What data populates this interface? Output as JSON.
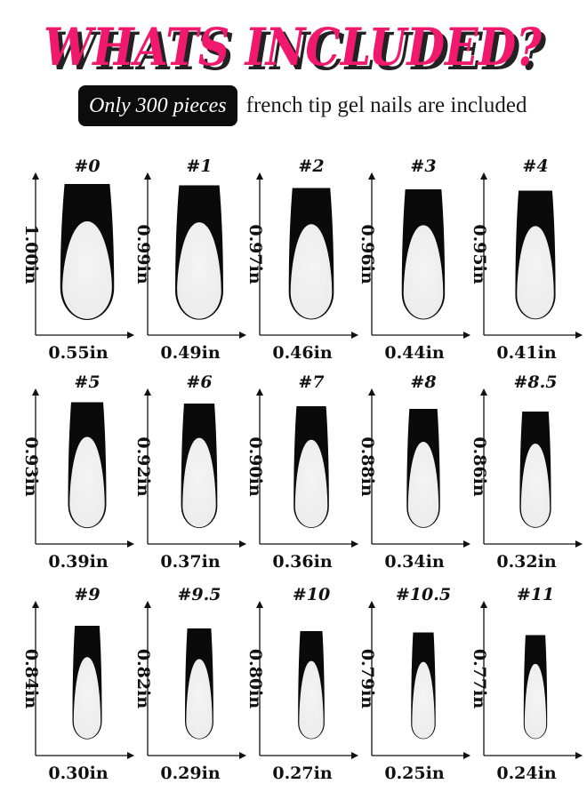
{
  "header": {
    "title": "WHATS INCLUDED?",
    "badge": "Only 300 pieces",
    "subtitle": "french tip gel nails are included"
  },
  "colors": {
    "title_fill": "#f0196e",
    "title_shadow": "#222222",
    "tip": "#0a0a0a",
    "nail_body": "#ececec"
  },
  "nails": [
    {
      "size": "#0",
      "length": "1.00in",
      "width": "0.55in",
      "length_in": 1.0,
      "width_in": 0.55
    },
    {
      "size": "#1",
      "length": "0.99in",
      "width": "0.49in",
      "length_in": 0.99,
      "width_in": 0.49
    },
    {
      "size": "#2",
      "length": "0.97in",
      "width": "0.46in",
      "length_in": 0.97,
      "width_in": 0.46
    },
    {
      "size": "#3",
      "length": "0.96in",
      "width": "0.44in",
      "length_in": 0.96,
      "width_in": 0.44
    },
    {
      "size": "#4",
      "length": "0.95in",
      "width": "0.41in",
      "length_in": 0.95,
      "width_in": 0.41
    },
    {
      "size": "#5",
      "length": "0.93in",
      "width": "0.39in",
      "length_in": 0.93,
      "width_in": 0.39
    },
    {
      "size": "#6",
      "length": "0.92in",
      "width": "0.37in",
      "length_in": 0.92,
      "width_in": 0.37
    },
    {
      "size": "#7",
      "length": "0.90in",
      "width": "0.36in",
      "length_in": 0.9,
      "width_in": 0.36
    },
    {
      "size": "#8",
      "length": "0.88in",
      "width": "0.34in",
      "length_in": 0.88,
      "width_in": 0.34
    },
    {
      "size": "#8.5",
      "length": "0.86in",
      "width": "0.32in",
      "length_in": 0.86,
      "width_in": 0.32
    },
    {
      "size": "#9",
      "length": "0.84in",
      "width": "0.30in",
      "length_in": 0.84,
      "width_in": 0.3
    },
    {
      "size": "#9.5",
      "length": "0.82in",
      "width": "0.29in",
      "length_in": 0.82,
      "width_in": 0.29
    },
    {
      "size": "#10",
      "length": "0.80in",
      "width": "0.27in",
      "length_in": 0.8,
      "width_in": 0.27
    },
    {
      "size": "#10.5",
      "length": "0.79in",
      "width": "0.25in",
      "length_in": 0.79,
      "width_in": 0.25
    },
    {
      "size": "#11",
      "length": "0.77in",
      "width": "0.24in",
      "length_in": 0.77,
      "width_in": 0.24
    }
  ]
}
